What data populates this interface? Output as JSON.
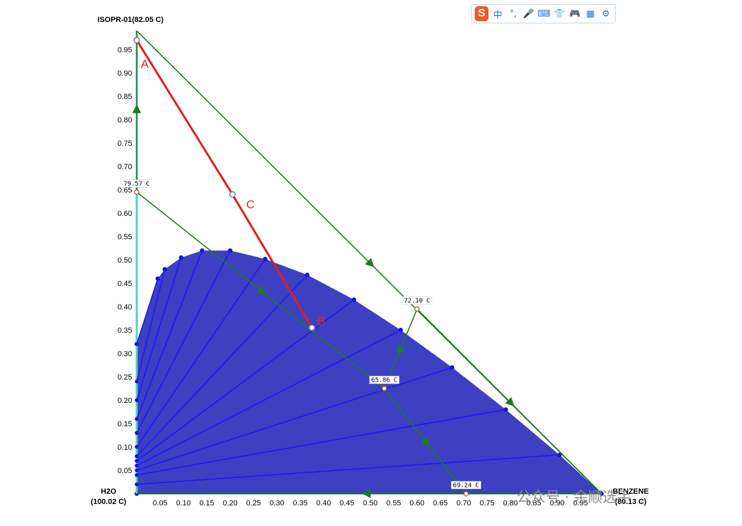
{
  "chart_data": {
    "type": "ternary",
    "vertices": {
      "top": "ISOPR-01(82.05 C)",
      "left_line1": "H2O",
      "left_line2": "(100.02 C)",
      "right_line1": "BENZENE",
      "right_line2": "(80.13 C)"
    },
    "left_axis_ticks": [
      "0.05",
      "0.10",
      "0.15",
      "0.20",
      "0.25",
      "0.30",
      "0.35",
      "0.40",
      "0.45",
      "0.50",
      "0.55",
      "0.60",
      "0.65",
      "0.70",
      "0.75",
      "0.80",
      "0.85",
      "0.90",
      "0.95"
    ],
    "bottom_axis_ticks": [
      "0.05",
      "0.10",
      "0.15",
      "0.20",
      "0.25",
      "0.30",
      "0.35",
      "0.40",
      "0.45",
      "0.50",
      "0.55",
      "0.60",
      "0.65",
      "0.70",
      "0.75",
      "0.80",
      "0.85",
      "0.90",
      "0.95"
    ],
    "azeotropes": [
      {
        "label": "79.57 C",
        "x": 0.0,
        "y": 0.645
      },
      {
        "label": "72.10 C",
        "x": 0.6,
        "y": 0.395
      },
      {
        "label": "65.86 C",
        "x": 0.53,
        "y": 0.225
      },
      {
        "label": "69.24 C",
        "x": 0.705,
        "y": 0.0
      }
    ],
    "binodal_curve": [
      [
        0.0,
        0.0
      ],
      [
        0.0,
        0.32
      ],
      [
        0.045,
        0.46
      ],
      [
        0.06,
        0.48
      ],
      [
        0.095,
        0.505
      ],
      [
        0.14,
        0.52
      ],
      [
        0.2,
        0.52
      ],
      [
        0.275,
        0.502
      ],
      [
        0.365,
        0.468
      ],
      [
        0.465,
        0.415
      ],
      [
        0.565,
        0.35
      ],
      [
        0.675,
        0.27
      ],
      [
        0.79,
        0.18
      ],
      [
        0.905,
        0.083
      ],
      [
        0.995,
        0.0
      ]
    ],
    "tie_lines": [
      {
        "left": [
          0.0,
          0.32
        ],
        "right": [
          0.045,
          0.46
        ]
      },
      {
        "left": [
          0.0,
          0.24
        ],
        "right": [
          0.06,
          0.48
        ]
      },
      {
        "left": [
          0.0,
          0.2
        ],
        "right": [
          0.095,
          0.505
        ]
      },
      {
        "left": [
          0.0,
          0.16
        ],
        "right": [
          0.14,
          0.52
        ]
      },
      {
        "left": [
          0.0,
          0.13
        ],
        "right": [
          0.2,
          0.52
        ]
      },
      {
        "left": [
          0.0,
          0.1
        ],
        "right": [
          0.275,
          0.502
        ]
      },
      {
        "left": [
          0.0,
          0.08
        ],
        "right": [
          0.365,
          0.468
        ]
      },
      {
        "left": [
          0.0,
          0.07
        ],
        "right": [
          0.465,
          0.415
        ]
      },
      {
        "left": [
          0.0,
          0.06
        ],
        "right": [
          0.565,
          0.35
        ]
      },
      {
        "left": [
          0.0,
          0.05
        ],
        "right": [
          0.675,
          0.27
        ]
      },
      {
        "left": [
          0.0,
          0.04
        ],
        "right": [
          0.79,
          0.18
        ]
      },
      {
        "left": [
          0.0,
          0.02
        ],
        "right": [
          0.905,
          0.083
        ]
      }
    ],
    "distillation_boundaries": [
      [
        [
          0.0,
          0.99
        ],
        [
          0.995,
          0.0
        ]
      ],
      [
        [
          0.6,
          0.395
        ],
        [
          0.995,
          0.0
        ]
      ],
      [
        [
          0.0,
          0.645
        ],
        [
          0.53,
          0.225
        ]
      ],
      [
        [
          0.6,
          0.395
        ],
        [
          0.53,
          0.225
        ]
      ],
      [
        [
          0.53,
          0.225
        ],
        [
          0.705,
          0.0
        ]
      ],
      [
        [
          0.995,
          0.0
        ],
        [
          0.0,
          0.0
        ]
      ],
      [
        [
          0.0,
          0.645
        ],
        [
          0.0,
          0.99
        ]
      ]
    ],
    "feed_line": {
      "points": [
        {
          "label": "A",
          "x": 0.0,
          "y": 0.97
        },
        {
          "label": "C",
          "x": 0.205,
          "y": 0.64
        },
        {
          "label": "B",
          "x": 0.375,
          "y": 0.355
        }
      ]
    },
    "colors": {
      "liquid_region": "#3d40c0",
      "tie_line": "#1a1aff",
      "boundary": "#1e7a1e",
      "feed_line": "#e11b1b",
      "marker_text": "#e8211b",
      "residue_curve": "#4dd4c0"
    }
  },
  "watermark": {
    "text": "公众号 · 余顺选手"
  },
  "ime_toolbar": {
    "logo": "S",
    "mode": "中",
    "punct": "°,",
    "mic": "🎤",
    "keyboard": "⌨",
    "skin": "👕",
    "game": "🎮",
    "apps": "▦",
    "settings": "⚙"
  }
}
